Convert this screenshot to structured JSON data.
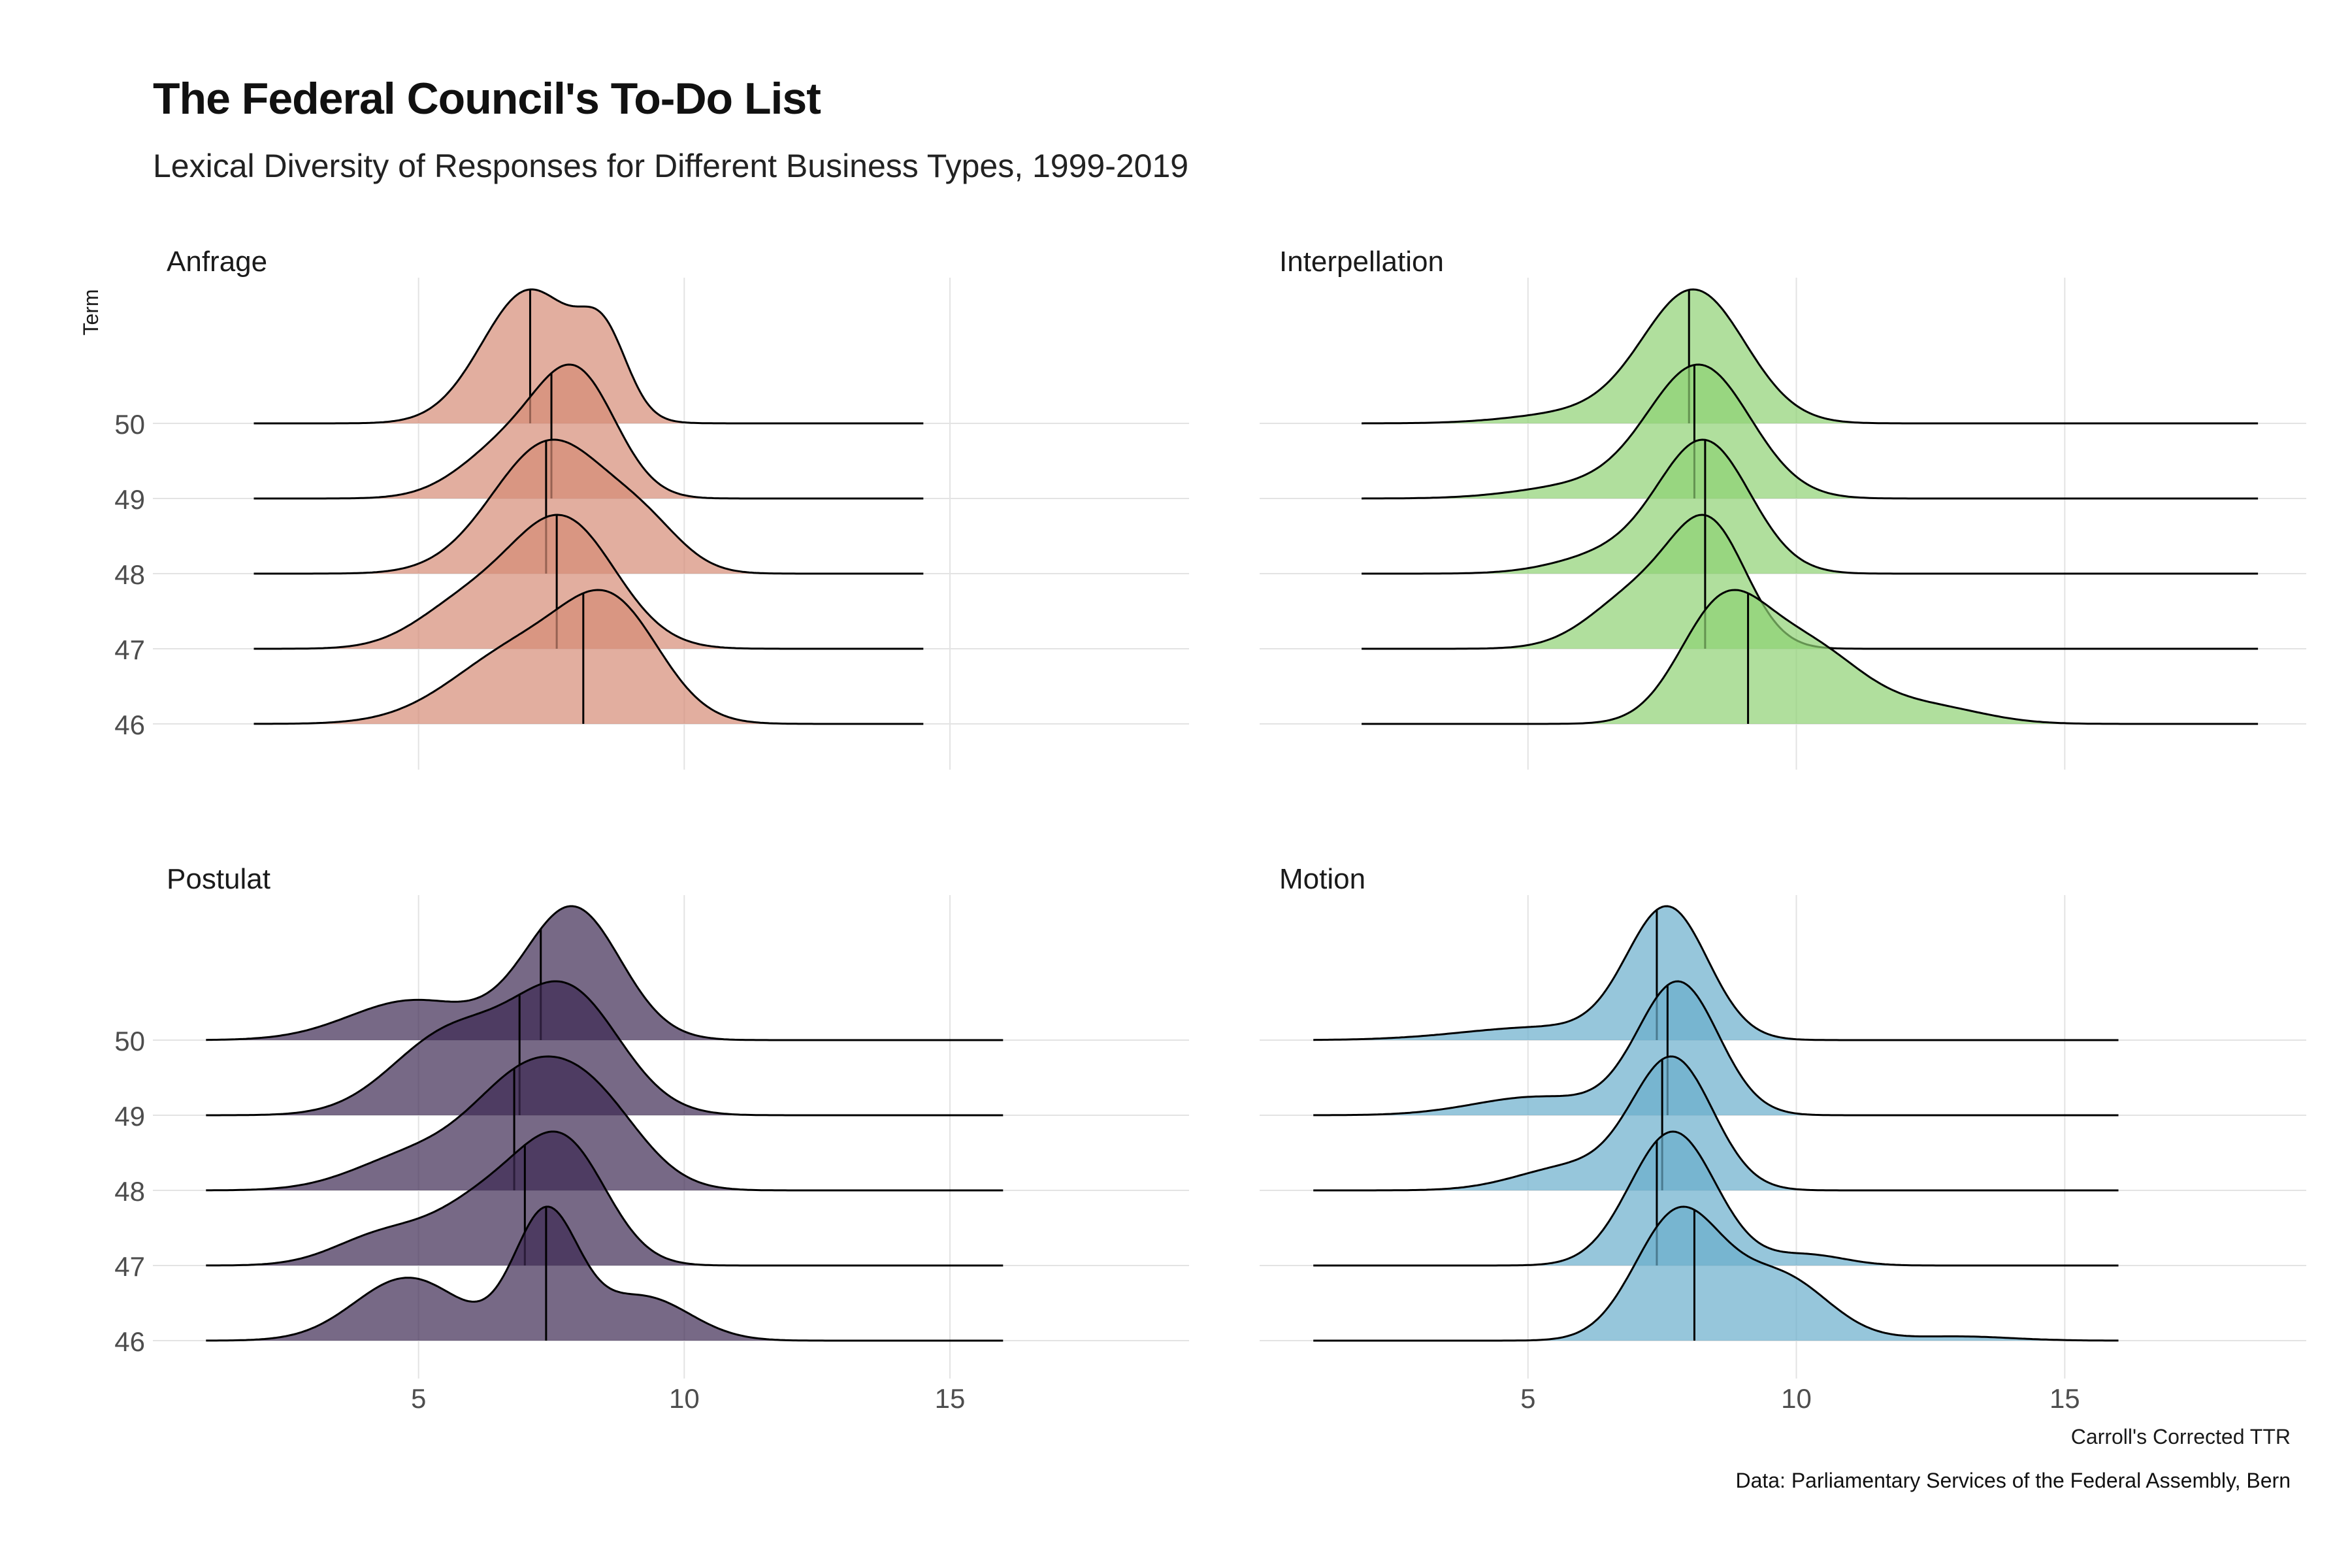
{
  "title": "The Federal Council's To-Do List",
  "subtitle": "Lexical Diversity of Responses for Different Business Types, 1999-2019",
  "caption": "Data: Parliamentary Services of the Federal Assembly, Bern",
  "chart_data": {
    "type": "ridgeline",
    "xlabel": "Carroll's Corrected TTR",
    "ylabel": "Term",
    "xlim": [
      0,
      19.5
    ],
    "x_ticks": [
      5,
      10,
      15
    ],
    "terms": [
      "50",
      "49",
      "48",
      "47",
      "46"
    ],
    "grid": true,
    "colors": {
      "Anfrage": "#d58c76",
      "Interpellation": "#8fd173",
      "Postulat": "#3d2a52",
      "Motion": "#6aaecc"
    },
    "panels": [
      {
        "name": "Anfrage",
        "x_range": [
          1.9,
          14.5
        ],
        "ridges": [
          {
            "term": "50",
            "median": 7.1,
            "peaks": [
              [
                7.1,
                0.9,
                1.0
              ],
              [
                8.5,
                0.45,
                0.5
              ]
            ]
          },
          {
            "term": "49",
            "median": 7.5,
            "peaks": [
              [
                8.0,
                0.75,
                1.0
              ],
              [
                6.7,
                0.9,
                0.45
              ]
            ]
          },
          {
            "term": "48",
            "median": 7.4,
            "peaks": [
              [
                7.5,
                1.1,
                1.0
              ],
              [
                9.3,
                0.7,
                0.25
              ]
            ]
          },
          {
            "term": "47",
            "median": 7.6,
            "peaks": [
              [
                7.7,
                1.0,
                1.0
              ],
              [
                5.8,
                0.9,
                0.3
              ]
            ]
          },
          {
            "term": "46",
            "median": 8.1,
            "peaks": [
              [
                8.7,
                0.9,
                0.75
              ],
              [
                7.0,
                1.3,
                0.6
              ]
            ]
          }
        ]
      },
      {
        "name": "Interpellation",
        "x_range": [
          1.9,
          18.6
        ],
        "ridges": [
          {
            "term": "50",
            "median": 8.0,
            "peaks": [
              [
                8.1,
                0.95,
                1.0
              ],
              [
                6.0,
                1.2,
                0.08
              ]
            ]
          },
          {
            "term": "49",
            "median": 8.1,
            "peaks": [
              [
                8.2,
                0.95,
                1.0
              ],
              [
                6.1,
                1.2,
                0.1
              ]
            ]
          },
          {
            "term": "48",
            "median": 8.3,
            "peaks": [
              [
                8.3,
                0.85,
                1.0
              ],
              [
                6.6,
                1.0,
                0.15
              ]
            ]
          },
          {
            "term": "47",
            "median": 8.3,
            "peaks": [
              [
                8.4,
                0.7,
                1.0
              ],
              [
                7.1,
                0.9,
                0.5
              ]
            ]
          },
          {
            "term": "46",
            "median": 9.1,
            "peaks": [
              [
                8.6,
                0.8,
                0.8
              ],
              [
                10.2,
                1.0,
                0.55
              ],
              [
                12.5,
                1.0,
                0.12
              ]
            ]
          }
        ]
      },
      {
        "name": "Postulat",
        "x_range": [
          1.0,
          16.0
        ],
        "ridges": [
          {
            "term": "50",
            "median": 7.3,
            "peaks": [
              [
                7.9,
                0.9,
                1.0
              ],
              [
                4.9,
                1.2,
                0.3
              ]
            ]
          },
          {
            "term": "49",
            "median": 6.9,
            "peaks": [
              [
                7.8,
                1.0,
                0.9
              ],
              [
                5.6,
                1.1,
                0.6
              ]
            ]
          },
          {
            "term": "48",
            "median": 6.8,
            "peaks": [
              [
                7.0,
                1.0,
                0.9
              ],
              [
                8.4,
                0.9,
                0.6
              ],
              [
                4.9,
                1.1,
                0.3
              ]
            ]
          },
          {
            "term": "47",
            "median": 7.0,
            "peaks": [
              [
                7.8,
                0.8,
                0.9
              ],
              [
                6.4,
                1.0,
                0.6
              ],
              [
                4.3,
                0.9,
                0.25
              ]
            ]
          },
          {
            "term": "46",
            "median": 7.4,
            "peaks": [
              [
                7.4,
                0.6,
                1.0
              ],
              [
                4.8,
                1.0,
                0.5
              ],
              [
                9.2,
                0.9,
                0.35
              ]
            ]
          }
        ]
      },
      {
        "name": "Motion",
        "x_range": [
          1.0,
          16.0
        ],
        "ridges": [
          {
            "term": "50",
            "median": 7.4,
            "peaks": [
              [
                7.6,
                0.75,
                1.0
              ],
              [
                5.3,
                1.5,
                0.1
              ]
            ]
          },
          {
            "term": "49",
            "median": 7.6,
            "peaks": [
              [
                7.8,
                0.75,
                1.0
              ],
              [
                5.2,
                1.2,
                0.14
              ]
            ]
          },
          {
            "term": "48",
            "median": 7.5,
            "peaks": [
              [
                7.7,
                0.75,
                1.0
              ],
              [
                5.8,
                1.0,
                0.18
              ]
            ]
          },
          {
            "term": "47",
            "median": 7.4,
            "peaks": [
              [
                7.7,
                0.8,
                1.0
              ],
              [
                10.2,
                0.7,
                0.08
              ]
            ]
          },
          {
            "term": "46",
            "median": 8.1,
            "peaks": [
              [
                7.8,
                0.8,
                0.9
              ],
              [
                9.7,
                0.9,
                0.45
              ],
              [
                13.0,
                1.0,
                0.03
              ]
            ]
          }
        ]
      }
    ]
  }
}
